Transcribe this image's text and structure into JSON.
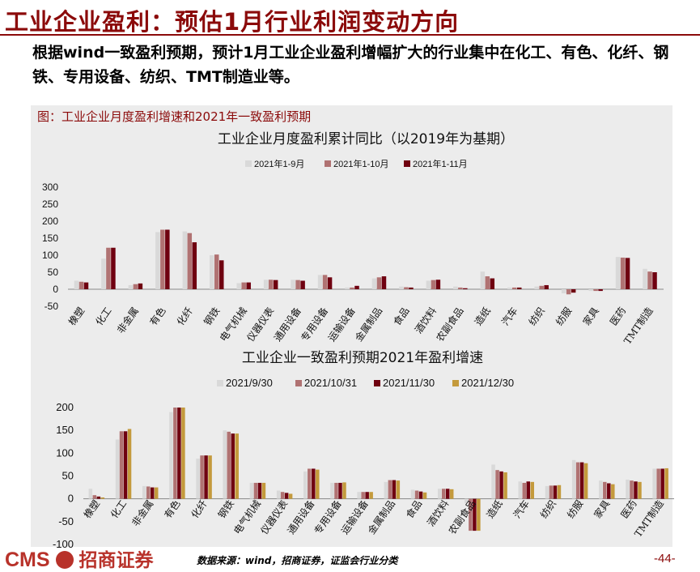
{
  "header": {
    "title": "工业企业盈利：预估1月行业利润变动方向",
    "subtitle": "根据wind一致盈利预期，预计1月工业企业盈利增幅扩大的行业集中在化工、有色、化纤、钢铁、专用设备、纺织、TMT制造业等。"
  },
  "panel_label": "图：工业企业月度盈利增速和2021年一致盈利预期",
  "footer": {
    "logo_latin": "CMS",
    "logo_cn": "招商证券",
    "source": "数据来源：wind，招商证券，证监会行业分类",
    "page": "-44-"
  },
  "colors": {
    "brand": "#8b0a0a",
    "s1": "#d9d9d9",
    "s2": "#b07272",
    "s3": "#6f0010",
    "s4": "#c49a3c"
  },
  "chart_data": [
    {
      "type": "bar",
      "title": "工业企业月度盈利累计同比（以2019年为基期）",
      "categories": [
        "橡塑",
        "化工",
        "非金属",
        "有色",
        "化纤",
        "钢铁",
        "电气机械",
        "仪器仪表",
        "通用设备",
        "专用设备",
        "运输设备",
        "金属制品",
        "食品",
        "酒饮料",
        "农副食品",
        "造纸",
        "汽车",
        "纺织",
        "纺服",
        "家具",
        "医药",
        "TMT制造"
      ],
      "series": [
        {
          "name": "2021年1-9月",
          "values": [
            25,
            90,
            12,
            168,
            170,
            100,
            18,
            28,
            28,
            42,
            5,
            32,
            8,
            25,
            8,
            52,
            5,
            8,
            -12,
            -5,
            95,
            60
          ]
        },
        {
          "name": "2021年1-10月",
          "values": [
            22,
            122,
            15,
            175,
            165,
            102,
            20,
            28,
            27,
            42,
            5,
            35,
            6,
            27,
            5,
            38,
            5,
            10,
            -15,
            -5,
            93,
            52
          ]
        },
        {
          "name": "2021年1-11月",
          "values": [
            20,
            122,
            17,
            175,
            138,
            85,
            20,
            27,
            25,
            35,
            10,
            38,
            5,
            28,
            3,
            32,
            5,
            12,
            -10,
            -5,
            92,
            50
          ]
        }
      ],
      "ylim": [
        -50,
        300
      ],
      "yticks": [
        -50,
        0,
        50,
        100,
        150,
        200,
        250,
        300
      ]
    },
    {
      "type": "bar",
      "title": "工业企业一致盈利预期2021年盈利增速",
      "categories": [
        "橡塑",
        "化工",
        "非金属",
        "有色",
        "化纤",
        "钢铁",
        "电气机械",
        "仪器仪表",
        "通用设备",
        "专用设备",
        "运输设备",
        "金属制品",
        "食品",
        "酒饮料",
        "农副食品",
        "造纸",
        "汽车",
        "纺织",
        "纺服",
        "家具",
        "医药",
        "TMT制造"
      ],
      "series": [
        {
          "name": "2021/9/30",
          "values": [
            22,
            130,
            28,
            190,
            88,
            150,
            35,
            18,
            60,
            35,
            15,
            37,
            20,
            22,
            -10,
            75,
            38,
            28,
            85,
            40,
            42,
            66
          ]
        },
        {
          "name": "2021/10/31",
          "values": [
            8,
            148,
            27,
            200,
            95,
            147,
            35,
            15,
            66,
            35,
            15,
            41,
            18,
            22,
            -70,
            63,
            35,
            29,
            80,
            37,
            40,
            66
          ]
        },
        {
          "name": "2021/11/30",
          "values": [
            5,
            148,
            25,
            200,
            95,
            143,
            35,
            13,
            66,
            35,
            15,
            41,
            16,
            22,
            -70,
            60,
            38,
            29,
            80,
            34,
            38,
            66
          ]
        },
        {
          "name": "2021/12/30",
          "values": [
            3,
            153,
            25,
            200,
            95,
            143,
            35,
            11,
            64,
            36,
            15,
            40,
            14,
            21,
            -70,
            58,
            37,
            30,
            78,
            32,
            37,
            67
          ]
        }
      ],
      "ylim": [
        -100,
        200
      ],
      "yticks": [
        -100,
        -50,
        0,
        50,
        100,
        150,
        200
      ]
    }
  ]
}
